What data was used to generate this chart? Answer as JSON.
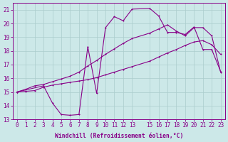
{
  "background_color": "#cce8e8",
  "grid_color": "#aacccc",
  "line_color": "#880088",
  "xlabel": "Windchill (Refroidissement éolien,°C)",
  "xlim_min": -0.5,
  "xlim_max": 23.5,
  "ylim_min": 13,
  "ylim_max": 21.5,
  "yticks": [
    13,
    14,
    15,
    16,
    17,
    18,
    19,
    20,
    21
  ],
  "xticks": [
    0,
    1,
    2,
    3,
    4,
    5,
    6,
    7,
    8,
    9,
    10,
    11,
    12,
    13,
    15,
    16,
    17,
    18,
    19,
    20,
    21,
    22,
    23
  ],
  "curve1_x": [
    0,
    1,
    2,
    3,
    4,
    5,
    6,
    7,
    8,
    9,
    10,
    11,
    12,
    13,
    15,
    16,
    17,
    18,
    19,
    20,
    21,
    22,
    23
  ],
  "curve1_y": [
    15.0,
    15.05,
    15.1,
    15.35,
    15.5,
    15.6,
    15.7,
    15.8,
    15.9,
    16.05,
    16.25,
    16.45,
    16.65,
    16.85,
    17.25,
    17.55,
    17.85,
    18.1,
    18.4,
    18.65,
    18.75,
    18.45,
    17.75
  ],
  "curve2_x": [
    0,
    1,
    2,
    3,
    4,
    5,
    6,
    7,
    8,
    9,
    10,
    11,
    12,
    13,
    15,
    16,
    17,
    18,
    19,
    20,
    21,
    22,
    23
  ],
  "curve2_y": [
    15.0,
    15.2,
    15.45,
    15.55,
    15.75,
    15.95,
    16.15,
    16.45,
    16.9,
    17.3,
    17.75,
    18.15,
    18.55,
    18.9,
    19.3,
    19.6,
    19.9,
    19.45,
    19.1,
    19.7,
    19.7,
    19.1,
    16.45
  ],
  "curve3_x": [
    0,
    3,
    4,
    5,
    6,
    7,
    8,
    9,
    10,
    11,
    12,
    13,
    15,
    16,
    17,
    18,
    19,
    20,
    21,
    22,
    23
  ],
  "curve3_y": [
    15.0,
    15.45,
    14.2,
    13.35,
    13.3,
    13.35,
    18.3,
    14.9,
    19.7,
    20.5,
    20.2,
    21.05,
    21.1,
    20.55,
    19.35,
    19.35,
    19.2,
    19.75,
    18.1,
    18.1,
    16.5
  ],
  "linewidth": 0.8,
  "markersize": 2.0,
  "tick_fontsize": 5.5,
  "xlabel_fontsize": 5.8
}
